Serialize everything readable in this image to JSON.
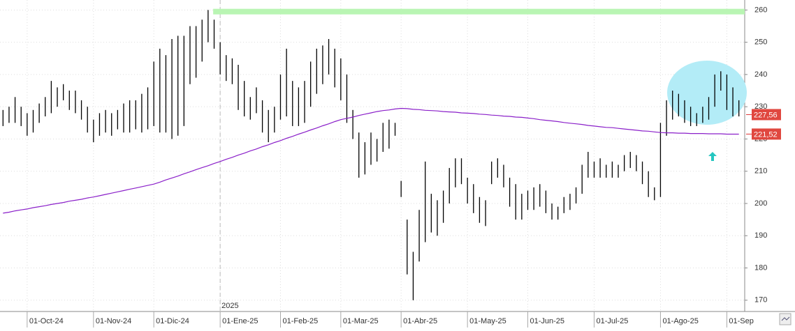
{
  "chart_data": {
    "type": "ohlc",
    "categories": [
      null,
      null,
      null,
      null,
      "01-Oct-24",
      null,
      null,
      null,
      null,
      null,
      null,
      null,
      null,
      null,
      null,
      "01-Nov-24",
      null,
      null,
      null,
      null,
      null,
      null,
      null,
      null,
      null,
      "01-Dic-24",
      null,
      null,
      null,
      null,
      null,
      null,
      null,
      null,
      null,
      null,
      "01-Ene-25",
      null,
      null,
      null,
      null,
      null,
      null,
      null,
      null,
      null,
      "01-Feb-25",
      null,
      null,
      null,
      null,
      null,
      null,
      null,
      null,
      null,
      "01-Mar-25",
      null,
      null,
      null,
      null,
      null,
      null,
      null,
      null,
      null,
      "01-Abr-25",
      null,
      null,
      null,
      null,
      null,
      null,
      null,
      null,
      null,
      null,
      "01-May-25",
      null,
      null,
      null,
      null,
      null,
      null,
      null,
      null,
      null,
      "01-Jun-25",
      null,
      null,
      null,
      null,
      null,
      null,
      null,
      null,
      null,
      null,
      "01-Jul-25",
      null,
      null,
      null,
      null,
      null,
      null,
      null,
      null,
      null,
      null,
      "01-Ago-25",
      null,
      null,
      null,
      null,
      null,
      null,
      null,
      null,
      null,
      null,
      "01-Sep",
      null,
      null
    ],
    "high": [
      229,
      230,
      233,
      230,
      228,
      229,
      231,
      233,
      238,
      236,
      237,
      235,
      235,
      232,
      230,
      226,
      228,
      229,
      228,
      229,
      231,
      232,
      232,
      234,
      236,
      244,
      248,
      246,
      251,
      252,
      252,
      255,
      255,
      257,
      260,
      257,
      250,
      246,
      245,
      243,
      238,
      233,
      236,
      232,
      229,
      230,
      240,
      248,
      238,
      236,
      238,
      244,
      248,
      249,
      251,
      248,
      245,
      240,
      229,
      222,
      219,
      222,
      220,
      225,
      226,
      225,
      207,
      195,
      185,
      198,
      213,
      203,
      201,
      204,
      211,
      214,
      214,
      208,
      206,
      202,
      201,
      213,
      214,
      212,
      208,
      206,
      203,
      204,
      205,
      206,
      204,
      200,
      199,
      202,
      203,
      205,
      212,
      216,
      213,
      214,
      212,
      213,
      212,
      215,
      216,
      215,
      213,
      210,
      205,
      225,
      232,
      235,
      234,
      232,
      230,
      228,
      230,
      233,
      240,
      241,
      240,
      236,
      232
    ],
    "low": [
      224,
      225,
      225,
      224,
      221,
      222,
      225,
      227,
      228,
      230,
      232,
      229,
      228,
      226,
      222,
      219,
      221,
      222,
      221,
      223,
      222,
      222,
      223,
      222,
      223,
      224,
      222,
      222,
      220,
      221,
      224,
      237,
      239,
      244,
      250,
      248,
      240,
      238,
      237,
      229,
      227,
      226,
      228,
      222,
      219,
      222,
      226,
      227,
      224,
      224,
      225,
      230,
      234,
      237,
      240,
      236,
      232,
      225,
      220,
      208,
      209,
      212,
      213,
      216,
      217,
      221,
      202,
      178,
      170,
      182,
      188,
      191,
      190,
      194,
      200,
      205,
      206,
      200,
      197,
      194,
      193,
      206,
      208,
      205,
      199,
      195,
      195,
      198,
      198,
      199,
      197,
      195,
      195,
      197,
      198,
      200,
      203,
      208,
      208,
      208,
      208,
      208,
      208,
      210,
      211,
      210,
      206,
      202,
      201,
      202,
      221,
      226,
      227,
      225,
      224,
      224,
      225,
      226,
      230,
      235,
      229,
      227,
      227
    ],
    "ma": [
      197,
      197.3,
      197.7,
      198,
      198.3,
      198.7,
      199,
      199.3,
      199.7,
      200,
      200.3,
      200.7,
      201,
      201.3,
      201.7,
      202,
      202.4,
      202.8,
      203.2,
      203.6,
      204,
      204.4,
      204.8,
      205.2,
      205.6,
      206,
      206.6,
      207.3,
      207.9,
      208.5,
      209.2,
      209.8,
      210.5,
      211.1,
      211.7,
      212.4,
      213,
      213.7,
      214.3,
      215,
      215.6,
      216.3,
      216.9,
      217.6,
      218.2,
      218.9,
      219.5,
      220.2,
      220.8,
      221.5,
      222.1,
      222.8,
      223.4,
      224.1,
      224.7,
      225.4,
      226,
      226.4,
      226.8,
      227.3,
      227.7,
      228.1,
      228.5,
      228.8,
      229,
      229.3,
      229.5,
      229.4,
      229.2,
      229.1,
      228.9,
      228.8,
      228.7,
      228.5,
      228.4,
      228.3,
      228.1,
      228,
      227.9,
      227.7,
      227.6,
      227.4,
      227.3,
      227.1,
      227,
      226.8,
      226.7,
      226.5,
      226.3,
      226,
      225.8,
      225.6,
      225.4,
      225.1,
      224.9,
      224.7,
      224.5,
      224.2,
      224,
      223.8,
      223.6,
      223.5,
      223.3,
      223.1,
      222.9,
      222.7,
      222.5,
      222.4,
      222.2,
      222,
      221.9,
      221.9,
      221.8,
      221.8,
      221.7,
      221.7,
      221.7,
      221.6,
      221.6,
      221.6,
      221.5,
      221.5,
      221.5
    ],
    "bar_color": "#000000",
    "ma_color": "#8a1fc9",
    "ylim": [
      166.5,
      263.1
    ],
    "yticks": [
      170,
      180,
      190,
      200,
      210,
      220,
      230,
      240,
      250,
      260
    ],
    "grid": true,
    "price_tags": [
      {
        "value": 227.56,
        "label": "227,56"
      },
      {
        "value": 221.52,
        "label": "221,52"
      }
    ],
    "level_line": 259.5,
    "year_label": "2025"
  }
}
